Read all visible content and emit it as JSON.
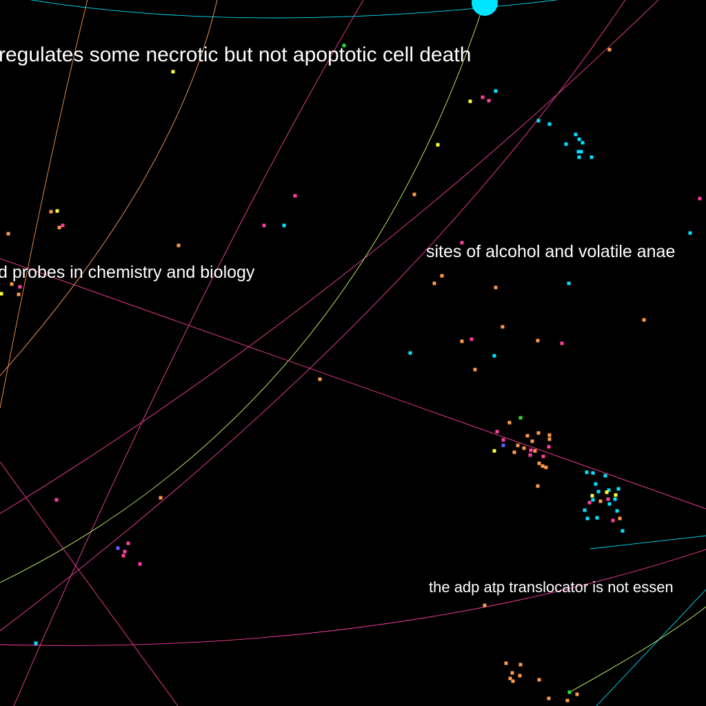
{
  "labels": {
    "necrotic": "regulates some necrotic but not apoptotic cell death",
    "probes": "d probes in chemistry and biology",
    "alcohol": "sites of alcohol and volatile anae",
    "translocator": "the adp atp translocator is not essen"
  },
  "colors": {
    "background": "#000000",
    "label": "#ffffff",
    "cyan": "#00e5ff",
    "pink": "#ff3fa0",
    "orange": "#ff9a4a",
    "yellow": "#ffff33",
    "green": "#33dd33",
    "blue": "#6a5cff",
    "lime": "#ccff66",
    "peach": "#ffa060"
  }
}
